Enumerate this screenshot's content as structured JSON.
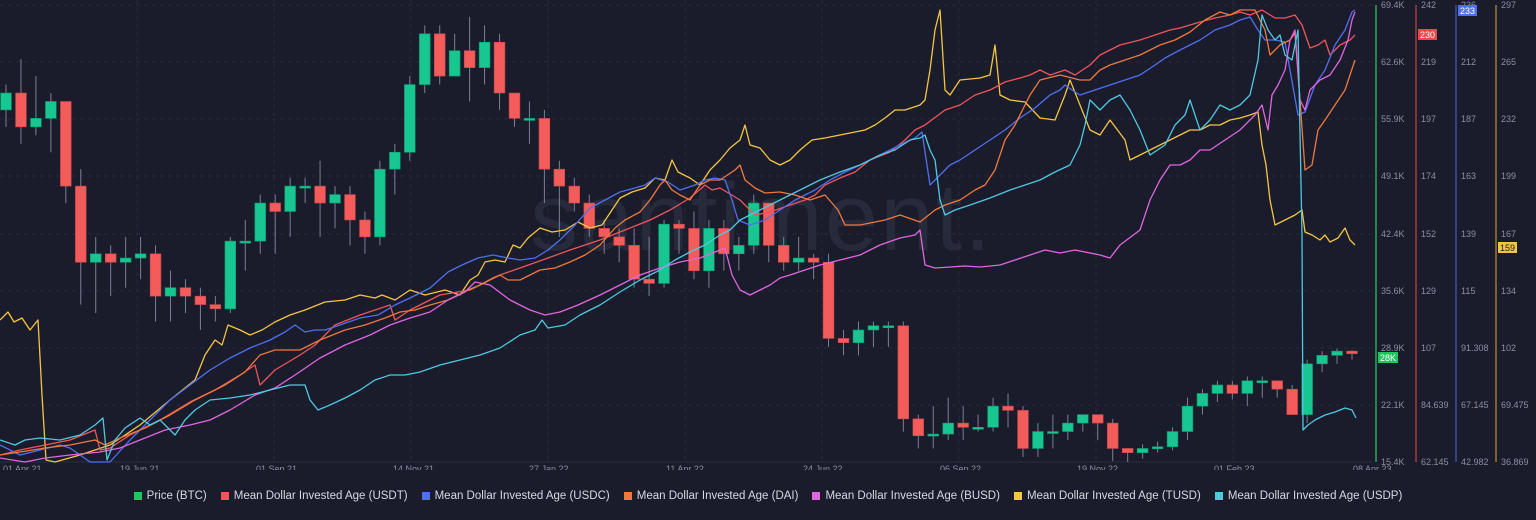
{
  "chart_data": {
    "type": "line+candlestick",
    "title": "",
    "watermark": "santiment.",
    "x_axis": {
      "tick_labels": [
        "01 Apr 21",
        "19 Jun 21",
        "01 Sep 21",
        "14 Nov 21",
        "27 Jan 22",
        "11 Apr 22",
        "24 Jun 22",
        "06 Sep 22",
        "19 Nov 22",
        "01 Feb 23",
        "08 Apr 23"
      ]
    },
    "y_axes": [
      {
        "series": "Price (BTC)",
        "color": "#26a65b",
        "ticks": [
          "69.4K",
          "62.6K",
          "55.9K",
          "49.1K",
          "42.4K",
          "35.6K",
          "28.9K",
          "22.1K",
          "15.4K"
        ],
        "current": "28K",
        "current_color": "#21c55d"
      },
      {
        "series": "Mean Dollar Invested Age (USDT)",
        "color": "#a83a3f",
        "ticks": [
          "242",
          "219",
          "197",
          "174",
          "152",
          "129",
          "107",
          "84.639",
          "62.145"
        ],
        "current": "230",
        "current_color": "#f0454b"
      },
      {
        "series": "Mean Dollar Invested Age (USDC)",
        "color": "#3b4fa8",
        "ticks": [
          "236",
          "212",
          "187",
          "163",
          "139",
          "115",
          "91.308",
          "67.145",
          "42.982"
        ],
        "current": "233",
        "current_color": "#4f6ff0"
      },
      {
        "series": "Mean Dollar Invested Age (TUSD)",
        "color": "#9c7a2e",
        "ticks": [
          "297",
          "265",
          "232",
          "199",
          "167",
          "134",
          "102",
          "69.475",
          "36.869"
        ],
        "current": "159",
        "current_color": "#f4c542"
      }
    ],
    "legend": [
      {
        "name": "Price (BTC)",
        "color": "#21c55d"
      },
      {
        "name": "Mean Dollar Invested Age (USDT)",
        "color": "#f0545b"
      },
      {
        "name": "Mean Dollar Invested Age (USDC)",
        "color": "#4f6ff0"
      },
      {
        "name": "Mean Dollar Invested Age (DAI)",
        "color": "#f0783c"
      },
      {
        "name": "Mean Dollar Invested Age (BUSD)",
        "color": "#e066e0"
      },
      {
        "name": "Mean Dollar Invested Age (TUSD)",
        "color": "#f4c542"
      },
      {
        "name": "Mean Dollar Invested Age (USDP)",
        "color": "#4fc8e0"
      }
    ],
    "price_candles_k": [
      [
        57,
        59,
        55,
        60
      ],
      [
        59,
        55,
        53,
        63
      ],
      [
        55,
        56,
        54,
        61
      ],
      [
        56,
        58,
        52,
        59
      ],
      [
        58,
        48,
        46,
        58
      ],
      [
        48,
        39,
        34,
        50
      ],
      [
        39,
        40,
        33,
        42
      ],
      [
        40,
        39,
        35,
        41
      ],
      [
        39,
        39.5,
        36,
        42
      ],
      [
        39.5,
        40,
        37,
        42
      ],
      [
        40,
        35,
        32,
        41
      ],
      [
        35,
        36,
        32,
        38
      ],
      [
        36,
        35,
        33,
        37
      ],
      [
        35,
        34,
        31,
        36
      ],
      [
        34,
        33.5,
        32,
        35
      ],
      [
        33.5,
        41.5,
        33,
        42
      ],
      [
        41.5,
        41.5,
        38,
        44
      ],
      [
        41.5,
        46,
        40,
        47
      ],
      [
        46,
        45,
        40,
        47
      ],
      [
        45,
        48,
        42,
        49
      ],
      [
        48,
        48,
        46,
        49
      ],
      [
        48,
        46,
        42,
        51
      ],
      [
        46,
        47,
        43,
        48
      ],
      [
        47,
        44,
        41,
        48
      ],
      [
        44,
        42,
        40,
        45
      ],
      [
        42,
        50,
        41,
        51
      ],
      [
        50,
        52,
        47,
        53
      ],
      [
        52,
        60,
        51,
        61
      ],
      [
        60,
        66,
        59,
        67
      ],
      [
        66,
        61,
        60,
        67
      ],
      [
        61,
        64,
        61,
        66
      ],
      [
        64,
        62,
        58,
        68
      ],
      [
        62,
        65,
        60,
        67
      ],
      [
        65,
        59,
        57,
        66
      ],
      [
        59,
        56,
        55,
        59
      ],
      [
        56,
        56,
        53,
        58
      ],
      [
        56,
        50,
        46,
        57
      ],
      [
        50,
        48,
        42,
        51
      ],
      [
        48,
        46,
        45,
        49
      ],
      [
        46,
        43,
        42,
        47
      ],
      [
        43,
        42,
        40,
        44
      ],
      [
        42,
        41,
        39,
        43
      ],
      [
        41,
        37,
        36,
        43
      ],
      [
        37,
        36.5,
        35,
        42
      ],
      [
        36.5,
        43.5,
        36,
        44
      ],
      [
        43.5,
        43,
        40,
        44
      ],
      [
        43,
        38,
        37,
        45
      ],
      [
        38,
        43,
        36,
        44
      ],
      [
        43,
        40,
        38,
        44
      ],
      [
        40,
        41,
        38,
        42
      ],
      [
        41,
        46,
        40,
        47
      ],
      [
        46,
        41,
        39,
        46
      ],
      [
        41,
        39,
        38,
        42
      ],
      [
        39,
        39.5,
        38,
        42
      ],
      [
        39.5,
        39,
        37,
        40
      ],
      [
        39,
        30,
        29,
        40
      ],
      [
        30,
        29.5,
        28,
        31
      ],
      [
        29.5,
        31,
        28,
        32
      ],
      [
        31,
        31.5,
        29,
        32
      ],
      [
        31.5,
        31.5,
        29,
        32
      ],
      [
        31.5,
        20.5,
        19,
        32
      ],
      [
        20.5,
        18.5,
        17,
        21
      ],
      [
        18.5,
        18.7,
        17,
        22
      ],
      [
        18.7,
        20,
        18,
        23
      ],
      [
        20,
        19.5,
        18,
        22
      ],
      [
        19.5,
        19.5,
        19,
        21
      ],
      [
        19.5,
        22,
        19,
        23
      ],
      [
        22,
        21.5,
        19.5,
        23.5
      ],
      [
        21.5,
        17,
        16,
        22
      ],
      [
        17,
        19,
        16,
        20
      ],
      [
        19,
        19,
        17,
        21
      ],
      [
        19,
        20,
        18,
        21
      ],
      [
        20,
        21,
        19,
        21
      ],
      [
        21,
        20,
        18,
        21
      ],
      [
        20,
        17,
        15.5,
        20.5
      ],
      [
        17,
        16.5,
        15.4,
        17
      ],
      [
        16.5,
        17,
        15.8,
        17.5
      ],
      [
        17,
        17.2,
        16.5,
        17.8
      ],
      [
        17.2,
        19,
        16.8,
        19.5
      ],
      [
        19,
        22,
        18,
        23
      ],
      [
        22,
        23.5,
        21,
        24
      ],
      [
        23.5,
        24.5,
        22.5,
        25
      ],
      [
        24.5,
        23.5,
        22.8,
        25
      ],
      [
        23.5,
        25,
        22,
        25.5
      ],
      [
        25,
        25,
        23,
        25.5
      ],
      [
        25,
        24,
        23,
        25
      ],
      [
        24,
        21,
        21,
        24.5
      ],
      [
        21,
        27,
        20,
        27.5
      ],
      [
        27,
        28,
        26,
        28.5
      ],
      [
        28,
        28.5,
        27,
        28.8
      ],
      [
        28.5,
        28.2,
        27.5,
        28.6
      ]
    ]
  }
}
